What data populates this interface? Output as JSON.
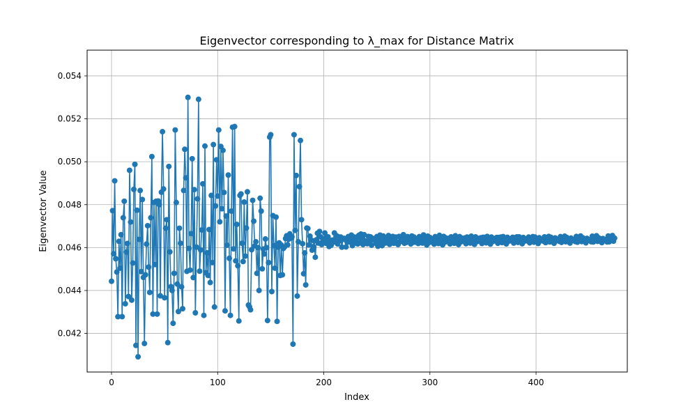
{
  "chart_data": {
    "type": "line",
    "title": "Eigenvector corresponding to λ_max for Distance Matrix",
    "xlabel": "Index",
    "ylabel": "Eigenvector Value",
    "xlim": [
      -23,
      486
    ],
    "ylim": [
      0.0402,
      0.0552
    ],
    "xticks": [
      0,
      100,
      200,
      300,
      400
    ],
    "yticks": [
      0.042,
      0.044,
      0.046,
      0.048,
      0.05,
      0.052,
      0.054
    ],
    "ytick_labels": [
      "0.042",
      "0.044",
      "0.046",
      "0.048",
      "0.050",
      "0.052",
      "0.054"
    ],
    "grid": true,
    "series": [
      {
        "color": "#1f77b4",
        "marker": "circle",
        "x_start": 0,
        "x_step": 1,
        "values": [
          0.04443,
          0.04772,
          0.04571,
          0.04911,
          0.04548,
          0.04486,
          0.04278,
          0.04629,
          0.04504,
          0.0466,
          0.04278,
          0.04739,
          0.04816,
          0.04338,
          0.04579,
          0.04619,
          0.04372,
          0.0496,
          0.04719,
          0.04355,
          0.04528,
          0.04871,
          0.04988,
          0.04144,
          0.04774,
          0.04091,
          0.04638,
          0.04866,
          0.04488,
          0.04824,
          0.04461,
          0.04153,
          0.04473,
          0.04616,
          0.04702,
          0.04509,
          0.04391,
          0.04739,
          0.05024,
          0.0429,
          0.0481,
          0.04521,
          0.04816,
          0.0429,
          0.04817,
          0.048,
          0.04375,
          0.04858,
          0.0514,
          0.04873,
          0.04366,
          0.0469,
          0.0473,
          0.04157,
          0.04978,
          0.0458,
          0.04418,
          0.044,
          0.04247,
          0.0448,
          0.05148,
          0.0481,
          0.0443,
          0.04302,
          0.0469,
          0.0462,
          0.04417,
          0.04315,
          0.04866,
          0.05058,
          0.04925,
          0.04489,
          0.053,
          0.04596,
          0.04495,
          0.04665,
          0.05014,
          0.0446,
          0.0487,
          0.04296,
          0.04602,
          0.04827,
          0.05291,
          0.0449,
          0.04589,
          0.04682,
          0.04897,
          0.04284,
          0.05073,
          0.04483,
          0.04575,
          0.0447,
          0.04684,
          0.04437,
          0.04843,
          0.0453,
          0.0508,
          0.04323,
          0.04794,
          0.05009,
          0.0484,
          0.05148,
          0.0472,
          0.05071,
          0.04781,
          0.05053,
          0.04857,
          0.04305,
          0.04747,
          0.04611,
          0.04938,
          0.0455,
          0.04284,
          0.0477,
          0.05161,
          0.04594,
          0.05164,
          0.04538,
          0.04708,
          0.04515,
          0.04258,
          0.04843,
          0.0485,
          0.0462,
          0.04535,
          0.04812,
          0.0456,
          0.04691,
          0.0486,
          0.04332,
          0.04324,
          0.0431,
          0.0459,
          0.0482,
          0.04723,
          0.04608,
          0.04627,
          0.0448,
          0.046,
          0.044,
          0.0483,
          0.0477,
          0.04501,
          0.04593,
          0.0457,
          0.0464,
          0.046,
          0.0426,
          0.0453,
          0.05115,
          0.05126,
          0.04395,
          0.04749,
          0.04609,
          0.04504,
          0.04742,
          0.04256,
          0.04602,
          0.04622,
          0.0447,
          0.04612,
          0.04473,
          0.04596,
          0.04603,
          0.04642,
          0.04655,
          0.04613,
          0.04639,
          0.04664,
          0.04644,
          0.0465,
          0.0415,
          0.05126,
          0.0468,
          0.04936,
          0.04374,
          0.04627,
          0.04884,
          0.05099,
          0.0473,
          0.04618,
          0.04478,
          0.04575,
          0.04426,
          0.04691,
          0.04689,
          0.04612,
          0.04653,
          0.04636,
          0.04588,
          0.04604,
          0.04631,
          0.04555,
          0.04636,
          0.04667,
          0.04621,
          0.04675,
          0.0465,
          0.04614,
          0.04628,
          0.0464,
          0.04668,
          0.0462,
          0.04627,
          0.0465,
          0.04605,
          0.04632,
          0.04611,
          0.04635,
          0.04633,
          0.04668,
          0.04625,
          0.04655,
          0.04617,
          0.0465,
          0.04632,
          0.04649,
          0.04602,
          0.04638,
          0.04643,
          0.0464,
          0.04603,
          0.04625,
          0.04651,
          0.04626,
          0.04629,
          0.04658,
          0.04609,
          0.04639,
          0.04649,
          0.04622,
          0.04646,
          0.04617,
          0.04657,
          0.04622,
          0.04663,
          0.04644,
          0.04614,
          0.0466,
          0.04631,
          0.04627,
          0.04618,
          0.04652,
          0.0463,
          0.0465,
          0.04611,
          0.04643,
          0.04637,
          0.04635,
          0.0462,
          0.04651,
          0.04606,
          0.04641,
          0.04658,
          0.04626,
          0.04609,
          0.04654,
          0.04637,
          0.04621,
          0.04644,
          0.04624,
          0.04656,
          0.04615,
          0.04646,
          0.0463,
          0.04652,
          0.0462,
          0.0464,
          0.04649,
          0.04625,
          0.04614,
          0.04652,
          0.04627,
          0.04643,
          0.04631,
          0.0466,
          0.0462,
          0.04637,
          0.04624,
          0.04651,
          0.04633,
          0.04641,
          0.04617,
          0.04654,
          0.04624,
          0.04649,
          0.04625,
          0.04637,
          0.04642,
          0.04619,
          0.04651,
          0.04628,
          0.04644,
          0.04621,
          0.04659,
          0.04632,
          0.04638,
          0.04612,
          0.04653,
          0.04623,
          0.04647,
          0.04626,
          0.04637,
          0.04641,
          0.04616,
          0.04651,
          0.04629,
          0.04644,
          0.04619,
          0.04657,
          0.04631,
          0.04639,
          0.04613,
          0.04652,
          0.04625,
          0.04645,
          0.04628,
          0.04636,
          0.04643,
          0.04617,
          0.0465,
          0.04627,
          0.04646,
          0.0462,
          0.04655,
          0.04633,
          0.04638,
          0.04614,
          0.04651,
          0.04626,
          0.04644,
          0.04629,
          0.04635,
          0.04645,
          0.04618,
          0.04649,
          0.04628,
          0.04647,
          0.04621,
          0.04653,
          0.04634,
          0.04637,
          0.04615,
          0.0465,
          0.04627,
          0.04643,
          0.0463,
          0.04634,
          0.04646,
          0.04619,
          0.04648,
          0.04629,
          0.04648,
          0.04622,
          0.04652,
          0.04635,
          0.04636,
          0.04616,
          0.04649,
          0.04628,
          0.04642,
          0.04631,
          0.04633,
          0.04647,
          0.0462,
          0.04647,
          0.0463,
          0.04649,
          0.04623,
          0.04651,
          0.04636,
          0.04635,
          0.04617,
          0.04648,
          0.04629,
          0.04641,
          0.04632,
          0.04632,
          0.04648,
          0.04621,
          0.04646,
          0.04631,
          0.0465,
          0.04624,
          0.0465,
          0.04637,
          0.04634,
          0.04618,
          0.04647,
          0.0463,
          0.0464,
          0.04633,
          0.04631,
          0.04649,
          0.04622,
          0.04645,
          0.04632,
          0.04651,
          0.04625,
          0.04649,
          0.04638,
          0.04633,
          0.04619,
          0.04646,
          0.04631,
          0.04639,
          0.04634,
          0.0463,
          0.0465,
          0.04623,
          0.04644,
          0.04633,
          0.04652,
          0.04626,
          0.04648,
          0.04639,
          0.04632,
          0.0462,
          0.04645,
          0.04632,
          0.04638,
          0.04635,
          0.04629,
          0.04651,
          0.04624,
          0.04643,
          0.04634,
          0.04653,
          0.04627,
          0.04647,
          0.0464,
          0.04631,
          0.04621,
          0.04644,
          0.04633,
          0.04637,
          0.04636,
          0.04628,
          0.04652,
          0.04625,
          0.04642,
          0.04635,
          0.04654,
          0.04628,
          0.04646,
          0.04641,
          0.0463,
          0.04622,
          0.04643,
          0.04634,
          0.04636,
          0.04637,
          0.04627,
          0.04653,
          0.04626,
          0.04641,
          0.04636,
          0.04655,
          0.04629,
          0.04645,
          0.04642,
          0.04629,
          0.04623,
          0.04642,
          0.04635,
          0.04635,
          0.04638,
          0.04626,
          0.04654,
          0.04627,
          0.0464,
          0.04637,
          0.04656,
          0.0463,
          0.04644
        ]
      }
    ]
  }
}
